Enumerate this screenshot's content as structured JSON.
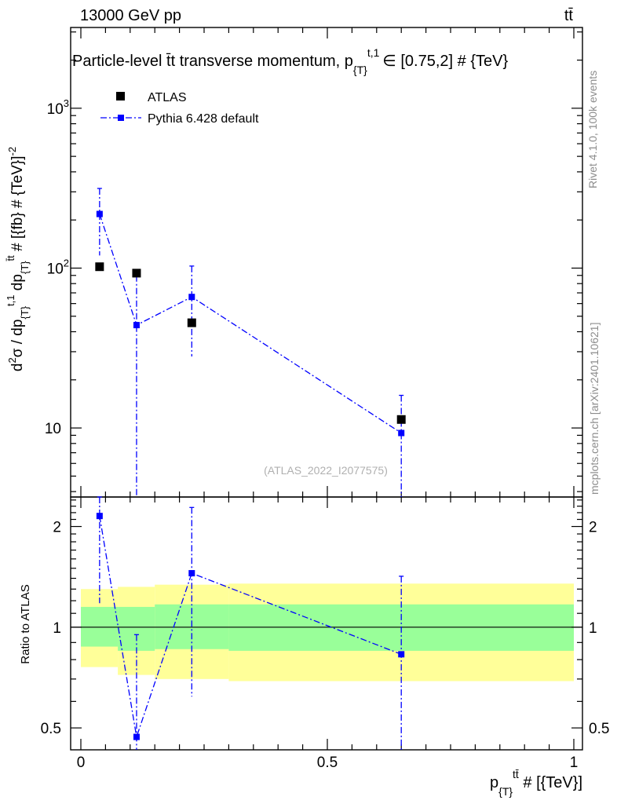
{
  "header": {
    "left": "13000 GeV pp",
    "right": "tt̄"
  },
  "side_labels": {
    "rivet": "Rivet 4.1.0,  100k events",
    "mcplots": "mcplots.cern.ch [arXiv:2401.10621]"
  },
  "chart_data": [
    {
      "type": "scatter",
      "panel": "main",
      "title": "Particle-level t̄t transverse momentum, p",
      "title_sub": "{T}",
      "title_sup": "t,1",
      "title_range": "∈ [0.75,2] # {TeV}",
      "ylabel": "d²σ / dp{T}t,1 dp{T}tt̄ # [{fb} # {TeV}⁻²]",
      "ylabel_parts": {
        "a": "d",
        "a_sup": "2",
        "b": "σ / dp",
        "b_sub": "{T}",
        "b_sup": "t,1",
        "c": " dp",
        "c_sub": "{T}",
        "c_sup": "t̄t",
        "d": " # [{fb} # {TeV}]",
        "d_sup": "-2"
      },
      "yscale": "log",
      "ylim": [
        3.7,
        3200
      ],
      "xlim": [
        -0.02,
        1.0
      ],
      "y_ticks": [
        {
          "value": 10,
          "label": "10"
        },
        {
          "value": 100,
          "label": "10",
          "sup": "2"
        },
        {
          "value": 1000,
          "label": "10",
          "sup": "3"
        }
      ],
      "watermark": "(ATLAS_2022_I2077575)",
      "legend": [
        {
          "name": "ATLAS",
          "style": "black-square"
        },
        {
          "name": "Pythia 6.428 default",
          "style": "blue-dashdot-square"
        }
      ],
      "series": [
        {
          "name": "ATLAS",
          "color": "#000000",
          "x": [
            0.038,
            0.113,
            0.225,
            0.65
          ],
          "y": [
            102,
            93,
            45.5,
            11.3
          ]
        },
        {
          "name": "Pythia 6.428 default",
          "color": "#0000ff",
          "x": [
            0.038,
            0.113,
            0.225,
            0.65
          ],
          "y": [
            218,
            44,
            66,
            9.3
          ],
          "y_err_low": [
            120,
            0,
            28,
            0
          ],
          "y_err_high": [
            315,
            90,
            103,
            16
          ]
        }
      ]
    },
    {
      "type": "scatter",
      "panel": "ratio",
      "ylabel": "Ratio to ATLAS",
      "xlabel": "p{T}tt̄ # [{TeV}]",
      "xlabel_parts": {
        "a": "p",
        "a_sub": "{T}",
        "a_sup": "tt̄",
        "b": " # [{TeV}]"
      },
      "yscale": "log",
      "ylim": [
        0.43,
        2.45
      ],
      "xlim": [
        -0.02,
        1.0
      ],
      "x_ticks": [
        {
          "value": 0,
          "label": "0"
        },
        {
          "value": 0.5,
          "label": "0.5"
        },
        {
          "value": 1,
          "label": "1"
        }
      ],
      "y_ticks": [
        {
          "value": 0.5,
          "label": "0.5"
        },
        {
          "value": 1,
          "label": "1"
        },
        {
          "value": 2,
          "label": "2"
        }
      ],
      "reference_line": 1,
      "bands": [
        {
          "x0": 0.0,
          "x1": 0.075,
          "green": [
            0.875,
            1.15
          ],
          "yellow": [
            0.76,
            1.3
          ]
        },
        {
          "x0": 0.075,
          "x1": 0.15,
          "green": [
            0.85,
            1.15
          ],
          "yellow": [
            0.72,
            1.32
          ]
        },
        {
          "x0": 0.15,
          "x1": 0.3,
          "green": [
            0.86,
            1.17
          ],
          "yellow": [
            0.7,
            1.34
          ]
        },
        {
          "x0": 0.3,
          "x1": 1.0,
          "green": [
            0.85,
            1.17
          ],
          "yellow": [
            0.69,
            1.35
          ]
        }
      ],
      "series": [
        {
          "name": "Pythia 6.428 default",
          "color": "#0000ff",
          "x": [
            0.038,
            0.113,
            0.225,
            0.65
          ],
          "y": [
            2.15,
            0.47,
            1.45,
            0.83
          ],
          "y_err_low": [
            1.18,
            0.0,
            0.62,
            0.0
          ],
          "y_err_high": [
            2.5,
            0.95,
            2.28,
            1.42
          ]
        }
      ]
    }
  ]
}
